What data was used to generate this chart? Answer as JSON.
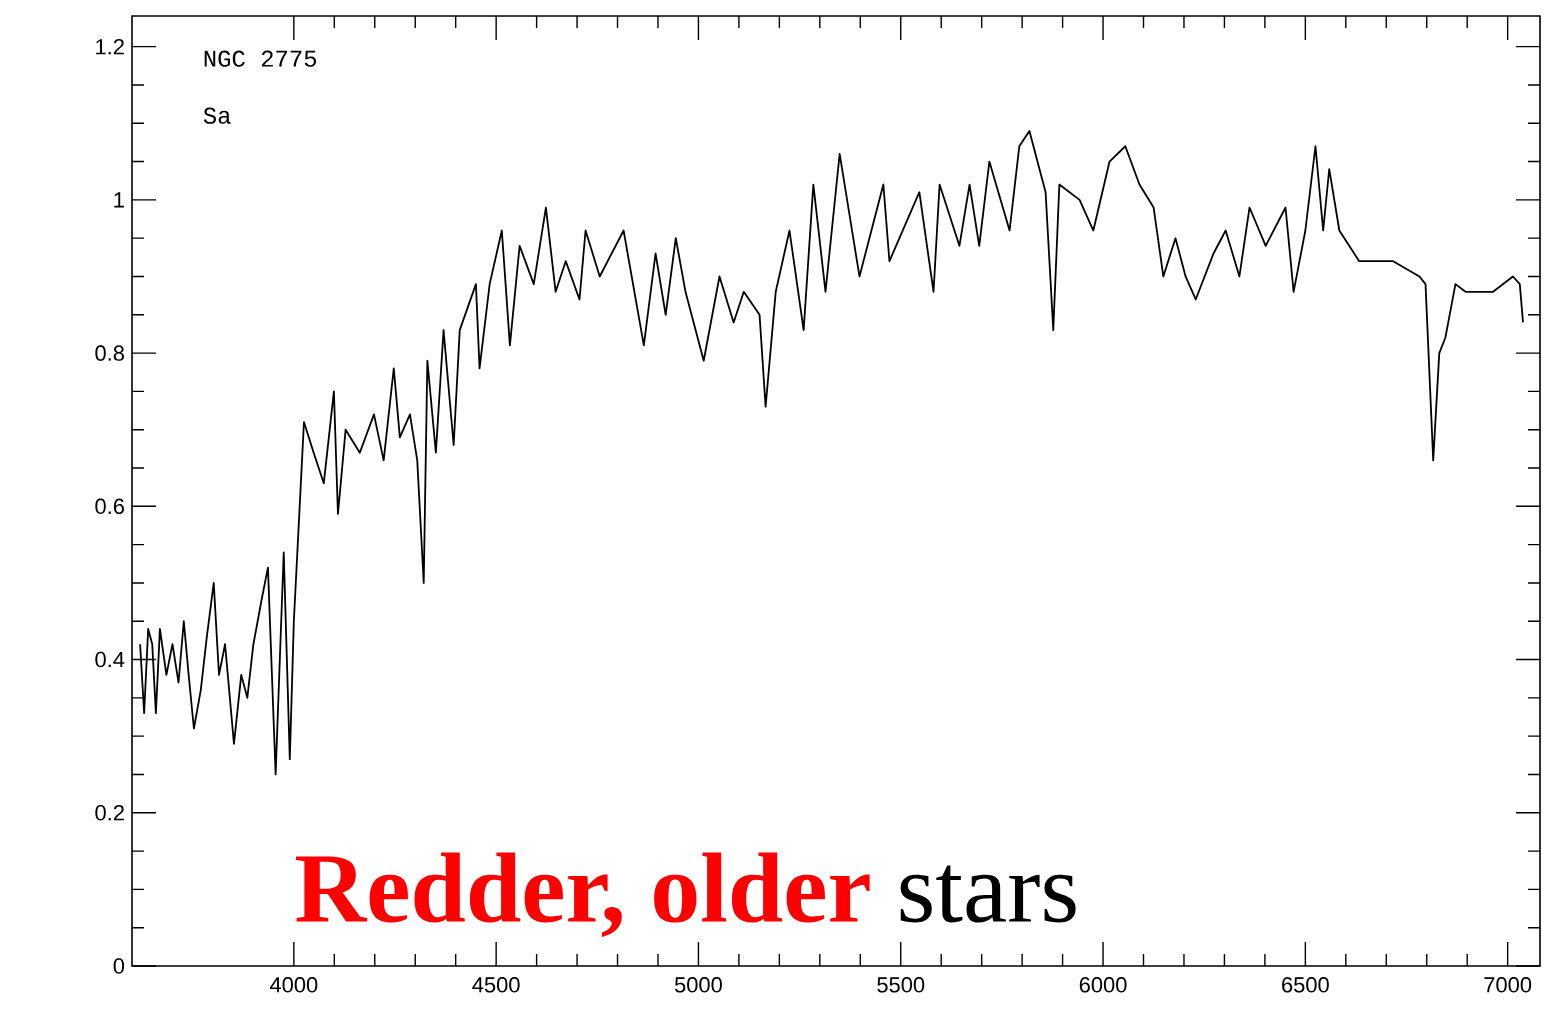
{
  "chart_data": {
    "type": "line",
    "annotations": [
      "NGC 2775",
      "Sa",
      "Redder, older",
      "stars"
    ],
    "xlim": [
      3600,
      7080
    ],
    "ylim": [
      0,
      1.24
    ],
    "xticks": [
      4000,
      4500,
      5000,
      5500,
      6000,
      6500,
      7000
    ],
    "yticks": [
      0,
      0.2,
      0.4,
      0.6,
      0.8,
      1,
      1.2
    ],
    "series": [
      {
        "color": "#000000",
        "x": [
          3620,
          3630,
          3640,
          3650,
          3659,
          3669,
          3685,
          3700,
          3715,
          3728,
          3740,
          3753,
          3770,
          3785,
          3802,
          3815,
          3830,
          3852,
          3870,
          3885,
          3900,
          3921,
          3936,
          3955,
          3975,
          3990,
          4000,
          4025,
          4049,
          4074,
          4099,
          4109,
          4128,
          4163,
          4198,
          4222,
          4247,
          4262,
          4287,
          4305,
          4321,
          4330,
          4351,
          4370,
          4395,
          4410,
          4450,
          4459,
          4484,
          4514,
          4534,
          4558,
          4593,
          4623,
          4647,
          4672,
          4706,
          4721,
          4756,
          4815,
          4865,
          4894,
          4919,
          4944,
          4968,
          5013,
          5052,
          5087,
          5112,
          5151,
          5166,
          5191,
          5225,
          5260,
          5284,
          5314,
          5349,
          5398,
          5457,
          5472,
          5546,
          5581,
          5596,
          5645,
          5670,
          5694,
          5719,
          5769,
          5793,
          5818,
          5843,
          5858,
          5877,
          5892,
          5942,
          5976,
          6016,
          6055,
          6090,
          6125,
          6149,
          6179,
          6204,
          6229,
          6273,
          6303,
          6337,
          6362,
          6402,
          6451,
          6471,
          6500,
          6525,
          6544,
          6559,
          6584,
          6633,
          6717,
          6782,
          6797,
          6816,
          6831,
          6846,
          6871,
          6896,
          6964,
          7013,
          7030,
          7038
        ],
        "values": [
          0.42,
          0.33,
          0.44,
          0.42,
          0.33,
          0.44,
          0.38,
          0.42,
          0.37,
          0.45,
          0.38,
          0.31,
          0.36,
          0.43,
          0.5,
          0.38,
          0.42,
          0.29,
          0.38,
          0.35,
          0.42,
          0.48,
          0.52,
          0.25,
          0.54,
          0.27,
          0.45,
          0.71,
          0.67,
          0.63,
          0.75,
          0.59,
          0.7,
          0.67,
          0.72,
          0.66,
          0.78,
          0.69,
          0.72,
          0.66,
          0.5,
          0.79,
          0.67,
          0.83,
          0.68,
          0.83,
          0.89,
          0.78,
          0.89,
          0.96,
          0.81,
          0.94,
          0.89,
          0.99,
          0.88,
          0.92,
          0.87,
          0.96,
          0.9,
          0.96,
          0.81,
          0.93,
          0.85,
          0.95,
          0.88,
          0.79,
          0.9,
          0.84,
          0.88,
          0.85,
          0.73,
          0.88,
          0.96,
          0.83,
          1.02,
          0.88,
          1.06,
          0.9,
          1.02,
          0.92,
          1.01,
          0.88,
          1.02,
          0.94,
          1.02,
          0.94,
          1.05,
          0.96,
          1.07,
          1.09,
          1.04,
          1.01,
          0.83,
          1.02,
          1.0,
          0.96,
          1.05,
          1.07,
          1.02,
          0.99,
          0.9,
          0.95,
          0.9,
          0.87,
          0.93,
          0.96,
          0.9,
          0.99,
          0.94,
          0.99,
          0.88,
          0.96,
          1.07,
          0.96,
          1.04,
          0.96,
          0.92,
          0.92,
          0.9,
          0.89,
          0.66,
          0.8,
          0.82,
          0.89,
          0.88,
          0.88,
          0.9,
          0.89,
          0.84
        ]
      }
    ]
  }
}
